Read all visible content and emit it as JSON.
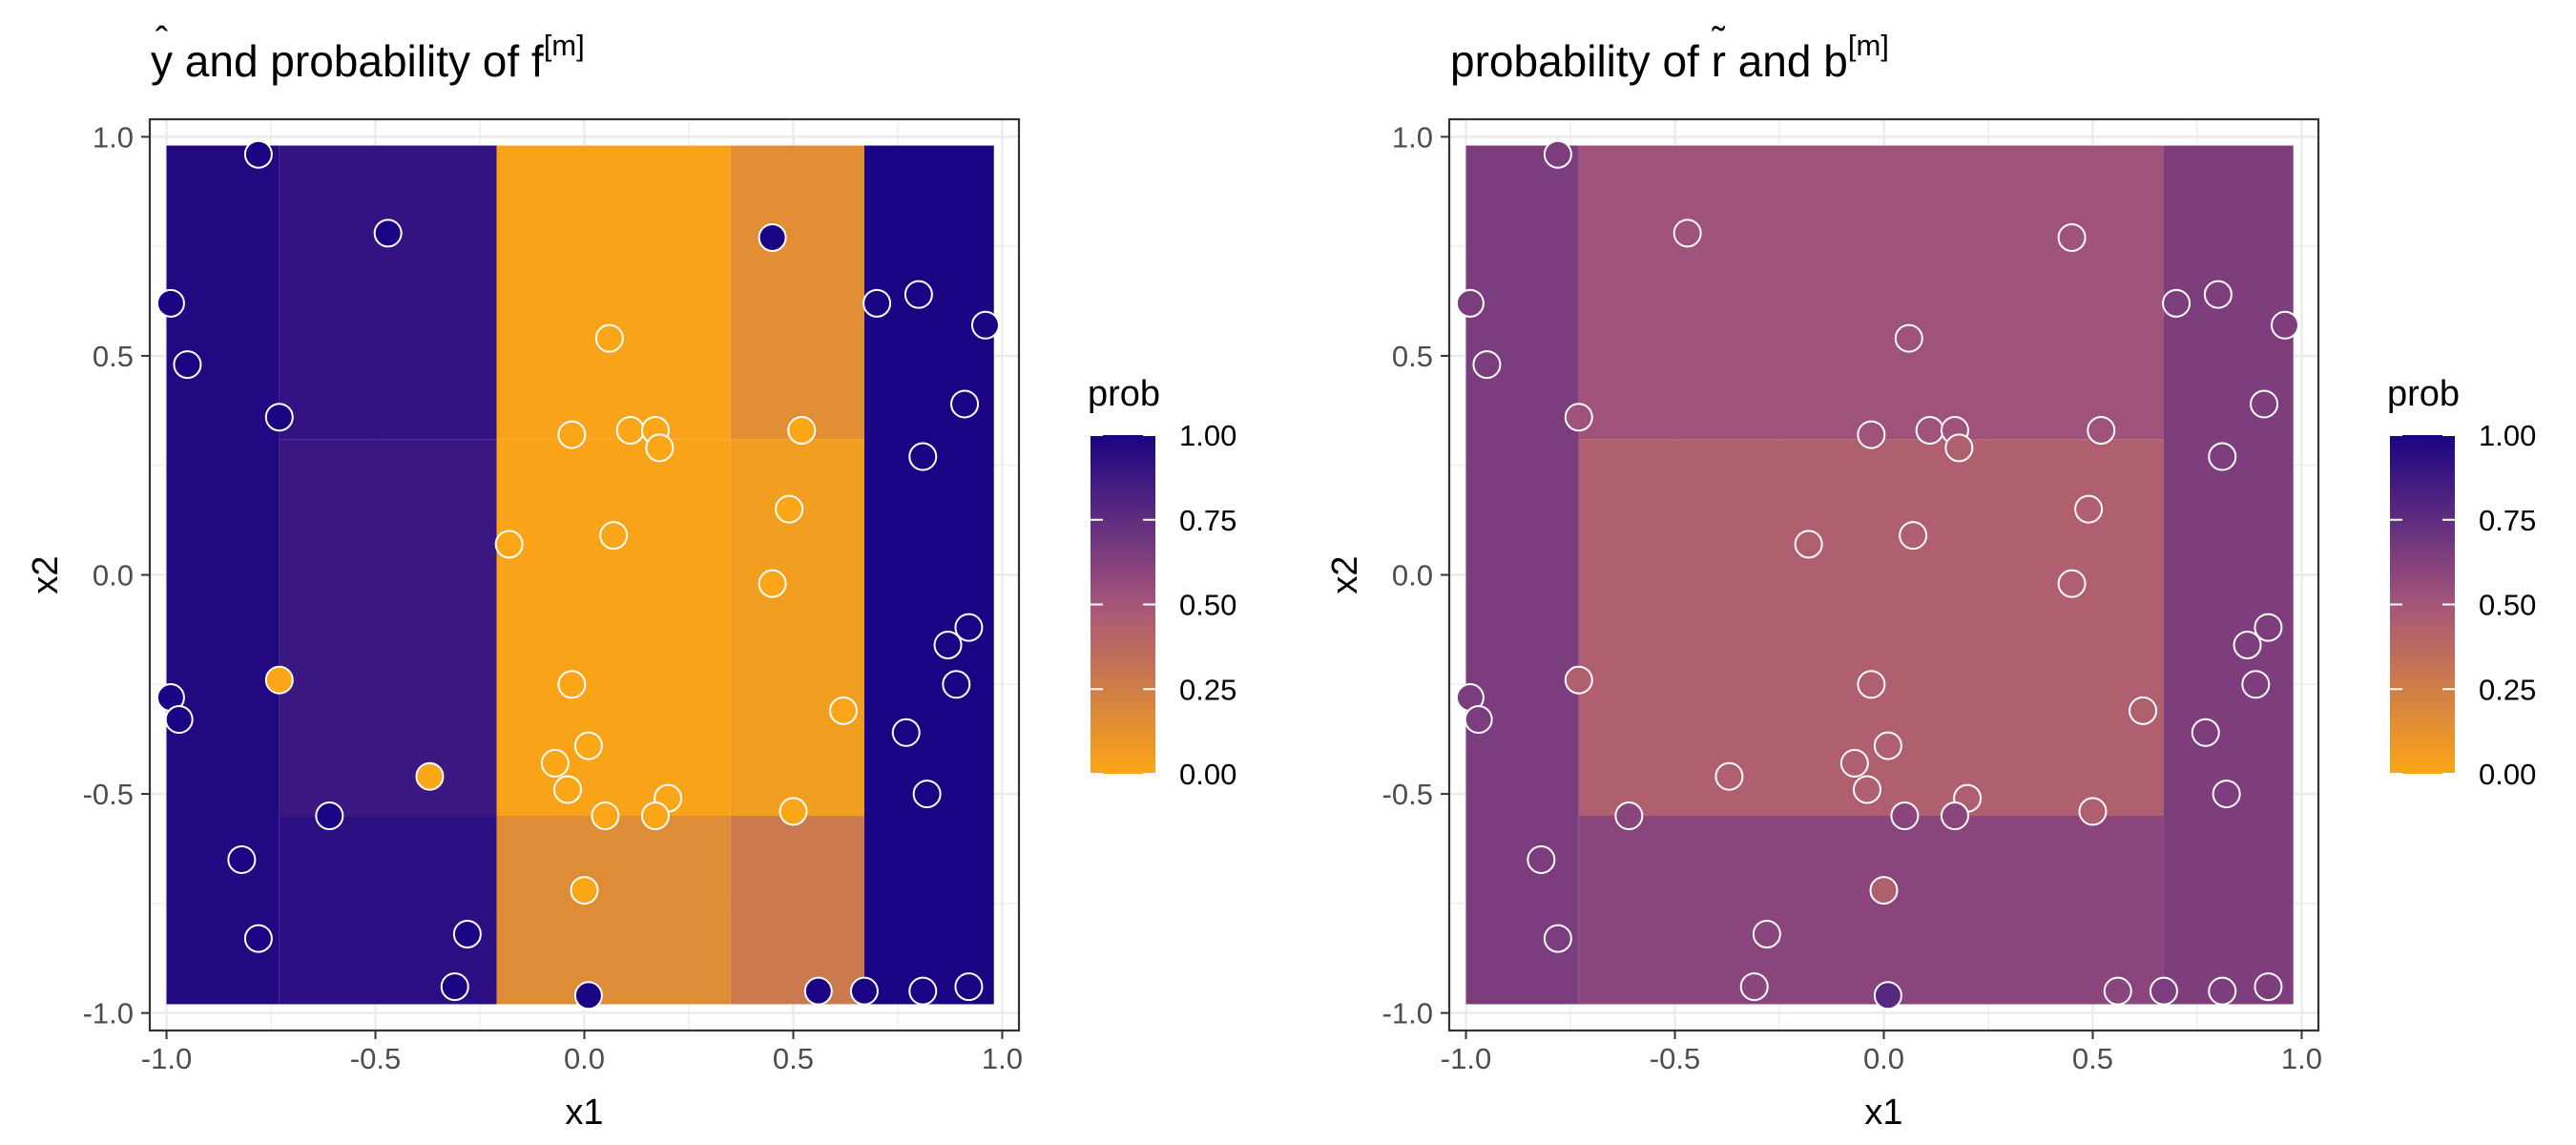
{
  "chart_data": [
    {
      "type": "heatmap",
      "title": "ŷ and probability of f[m]",
      "title_parts": {
        "hat_base": "y",
        "mid": " and probability of f",
        "sup": "[m]"
      },
      "xlabel": "x1",
      "ylabel": "x2",
      "xlim": [
        -1.0,
        1.0
      ],
      "ylim": [
        -1.0,
        1.0
      ],
      "x_ticks": [
        "-1.0",
        "-0.5",
        "0.0",
        "0.5",
        "1.0"
      ],
      "y_ticks": [
        "-1.0",
        "-0.5",
        "0.0",
        "0.5",
        "1.0"
      ],
      "grid": true,
      "legend": {
        "title": "prob",
        "position": "right",
        "min": 0,
        "max": 1,
        "ticks": [
          "1.00",
          "0.75",
          "0.50",
          "0.25",
          "0.00"
        ]
      },
      "regions": [
        {
          "x": [
            -1.0,
            -0.73
          ],
          "y": [
            -0.98,
            0.98
          ],
          "prob": 0.97
        },
        {
          "x": [
            -0.73,
            -0.21
          ],
          "y": [
            -0.98,
            -0.55
          ],
          "prob": 0.94
        },
        {
          "x": [
            -0.73,
            -0.21
          ],
          "y": [
            -0.55,
            0.31
          ],
          "prob": 0.88
        },
        {
          "x": [
            -0.73,
            -0.21
          ],
          "y": [
            0.31,
            0.98
          ],
          "prob": 0.91
        },
        {
          "x": [
            -0.21,
            0.35
          ],
          "y": [
            -0.98,
            -0.55
          ],
          "prob": 0.16
        },
        {
          "x": [
            -0.21,
            0.35
          ],
          "y": [
            -0.55,
            0.31
          ],
          "prob": 0.01
        },
        {
          "x": [
            -0.21,
            0.35
          ],
          "y": [
            0.31,
            0.98
          ],
          "prob": 0.02
        },
        {
          "x": [
            0.35,
            0.67
          ],
          "y": [
            -0.98,
            -0.55
          ],
          "prob": 0.28
        },
        {
          "x": [
            0.35,
            0.67
          ],
          "y": [
            -0.55,
            0.31
          ],
          "prob": 0.05
        },
        {
          "x": [
            0.35,
            0.67
          ],
          "y": [
            0.31,
            0.98
          ],
          "prob": 0.15
        },
        {
          "x": [
            0.67,
            0.98
          ],
          "y": [
            -0.98,
            0.98
          ],
          "prob": 1.0
        }
      ],
      "points": [
        {
          "x": -0.78,
          "y": 0.96,
          "prob": 1
        },
        {
          "x": -0.47,
          "y": 0.78,
          "prob": 1
        },
        {
          "x": 0.45,
          "y": 0.77,
          "prob": 1
        },
        {
          "x": -0.99,
          "y": 0.62,
          "prob": 1
        },
        {
          "x": 0.7,
          "y": 0.62,
          "prob": 1
        },
        {
          "x": 0.8,
          "y": 0.64,
          "prob": 1
        },
        {
          "x": 0.96,
          "y": 0.57,
          "prob": 1
        },
        {
          "x": 0.06,
          "y": 0.54,
          "prob": 0
        },
        {
          "x": -0.95,
          "y": 0.48,
          "prob": 1
        },
        {
          "x": 0.91,
          "y": 0.39,
          "prob": 1
        },
        {
          "x": -0.73,
          "y": 0.36,
          "prob": 1
        },
        {
          "x": -0.03,
          "y": 0.32,
          "prob": 0
        },
        {
          "x": 0.11,
          "y": 0.33,
          "prob": 0
        },
        {
          "x": 0.17,
          "y": 0.33,
          "prob": 0
        },
        {
          "x": 0.18,
          "y": 0.29,
          "prob": 0
        },
        {
          "x": 0.52,
          "y": 0.33,
          "prob": 0
        },
        {
          "x": 0.81,
          "y": 0.27,
          "prob": 1
        },
        {
          "x": 0.49,
          "y": 0.15,
          "prob": 0
        },
        {
          "x": 0.07,
          "y": 0.09,
          "prob": 0
        },
        {
          "x": -0.18,
          "y": 0.07,
          "prob": 0
        },
        {
          "x": 0.45,
          "y": -0.02,
          "prob": 0
        },
        {
          "x": 0.92,
          "y": -0.12,
          "prob": 1
        },
        {
          "x": 0.87,
          "y": -0.16,
          "prob": 1
        },
        {
          "x": -0.73,
          "y": -0.24,
          "prob": 0
        },
        {
          "x": -0.03,
          "y": -0.25,
          "prob": 0
        },
        {
          "x": 0.89,
          "y": -0.25,
          "prob": 1
        },
        {
          "x": -0.99,
          "y": -0.28,
          "prob": 1
        },
        {
          "x": -0.97,
          "y": -0.33,
          "prob": 1
        },
        {
          "x": 0.62,
          "y": -0.31,
          "prob": 0
        },
        {
          "x": 0.77,
          "y": -0.36,
          "prob": 1
        },
        {
          "x": 0.01,
          "y": -0.39,
          "prob": 0
        },
        {
          "x": -0.07,
          "y": -0.43,
          "prob": 0
        },
        {
          "x": -0.37,
          "y": -0.46,
          "prob": 0
        },
        {
          "x": -0.04,
          "y": -0.49,
          "prob": 0
        },
        {
          "x": 0.2,
          "y": -0.51,
          "prob": 0
        },
        {
          "x": 0.82,
          "y": -0.5,
          "prob": 1
        },
        {
          "x": 0.05,
          "y": -0.55,
          "prob": 0
        },
        {
          "x": 0.17,
          "y": -0.55,
          "prob": 0
        },
        {
          "x": -0.61,
          "y": -0.55,
          "prob": 1
        },
        {
          "x": 0.5,
          "y": -0.54,
          "prob": 0
        },
        {
          "x": -0.82,
          "y": -0.65,
          "prob": 1
        },
        {
          "x": 0.0,
          "y": -0.72,
          "prob": 0
        },
        {
          "x": -0.78,
          "y": -0.83,
          "prob": 1
        },
        {
          "x": -0.28,
          "y": -0.82,
          "prob": 1
        },
        {
          "x": -0.31,
          "y": -0.94,
          "prob": 1
        },
        {
          "x": 0.01,
          "y": -0.96,
          "prob": 1
        },
        {
          "x": 0.56,
          "y": -0.95,
          "prob": 1
        },
        {
          "x": 0.67,
          "y": -0.95,
          "prob": 1
        },
        {
          "x": 0.81,
          "y": -0.95,
          "prob": 1
        },
        {
          "x": 0.92,
          "y": -0.94,
          "prob": 1
        }
      ]
    },
    {
      "type": "heatmap",
      "title": "probability of r̃ and b[m]",
      "title_parts": {
        "pre": "probability of ",
        "tilde_base": "r",
        "mid": " and b",
        "sup": "[m]"
      },
      "xlabel": "x1",
      "ylabel": "x2",
      "xlim": [
        -1.0,
        1.0
      ],
      "ylim": [
        -1.0,
        1.0
      ],
      "x_ticks": [
        "-1.0",
        "-0.5",
        "0.0",
        "0.5",
        "1.0"
      ],
      "y_ticks": [
        "-1.0",
        "-0.5",
        "0.0",
        "0.5",
        "1.0"
      ],
      "grid": true,
      "legend": {
        "title": "prob",
        "position": "right",
        "min": 0,
        "max": 1,
        "ticks": [
          "1.00",
          "0.75",
          "0.50",
          "0.25",
          "0.00"
        ]
      },
      "regions": [
        {
          "x": [
            -1.0,
            -0.73
          ],
          "y": [
            -0.98,
            0.98
          ],
          "prob": 0.65
        },
        {
          "x": [
            -0.73,
            0.67
          ],
          "y": [
            -0.98,
            -0.55
          ],
          "prob": 0.6
        },
        {
          "x": [
            -0.73,
            0.67
          ],
          "y": [
            -0.55,
            0.31
          ],
          "prob": 0.44
        },
        {
          "x": [
            -0.73,
            0.67
          ],
          "y": [
            0.31,
            0.98
          ],
          "prob": 0.52
        },
        {
          "x": [
            0.67,
            0.98
          ],
          "y": [
            -0.98,
            0.98
          ],
          "prob": 0.64
        }
      ],
      "points": [
        {
          "x": -0.78,
          "y": 0.96,
          "prob": 0.65
        },
        {
          "x": -0.47,
          "y": 0.78,
          "prob": 0.52
        },
        {
          "x": 0.45,
          "y": 0.77,
          "prob": 0.52
        },
        {
          "x": -0.99,
          "y": 0.62,
          "prob": 0.65
        },
        {
          "x": 0.7,
          "y": 0.62,
          "prob": 0.64
        },
        {
          "x": 0.8,
          "y": 0.64,
          "prob": 0.64
        },
        {
          "x": 0.96,
          "y": 0.57,
          "prob": 0.64
        },
        {
          "x": 0.06,
          "y": 0.54,
          "prob": 0.52
        },
        {
          "x": -0.95,
          "y": 0.48,
          "prob": 0.65
        },
        {
          "x": 0.91,
          "y": 0.39,
          "prob": 0.64
        },
        {
          "x": -0.73,
          "y": 0.36,
          "prob": 0.52
        },
        {
          "x": -0.03,
          "y": 0.32,
          "prob": 0.52
        },
        {
          "x": 0.11,
          "y": 0.33,
          "prob": 0.52
        },
        {
          "x": 0.17,
          "y": 0.33,
          "prob": 0.52
        },
        {
          "x": 0.18,
          "y": 0.29,
          "prob": 0.44
        },
        {
          "x": 0.52,
          "y": 0.33,
          "prob": 0.52
        },
        {
          "x": 0.81,
          "y": 0.27,
          "prob": 0.64
        },
        {
          "x": 0.49,
          "y": 0.15,
          "prob": 0.44
        },
        {
          "x": 0.07,
          "y": 0.09,
          "prob": 0.44
        },
        {
          "x": -0.18,
          "y": 0.07,
          "prob": 0.44
        },
        {
          "x": 0.45,
          "y": -0.02,
          "prob": 0.44
        },
        {
          "x": 0.92,
          "y": -0.12,
          "prob": 0.64
        },
        {
          "x": 0.87,
          "y": -0.16,
          "prob": 0.64
        },
        {
          "x": -0.73,
          "y": -0.24,
          "prob": 0.44
        },
        {
          "x": -0.03,
          "y": -0.25,
          "prob": 0.44
        },
        {
          "x": 0.89,
          "y": -0.25,
          "prob": 0.64
        },
        {
          "x": -0.99,
          "y": -0.28,
          "prob": 0.65
        },
        {
          "x": -0.97,
          "y": -0.33,
          "prob": 0.65
        },
        {
          "x": 0.62,
          "y": -0.31,
          "prob": 0.44
        },
        {
          "x": 0.77,
          "y": -0.36,
          "prob": 0.64
        },
        {
          "x": 0.01,
          "y": -0.39,
          "prob": 0.44
        },
        {
          "x": -0.07,
          "y": -0.43,
          "prob": 0.44
        },
        {
          "x": -0.37,
          "y": -0.46,
          "prob": 0.44
        },
        {
          "x": -0.04,
          "y": -0.49,
          "prob": 0.44
        },
        {
          "x": 0.2,
          "y": -0.51,
          "prob": 0.44
        },
        {
          "x": 0.82,
          "y": -0.5,
          "prob": 0.64
        },
        {
          "x": 0.05,
          "y": -0.55,
          "prob": 0.6
        },
        {
          "x": 0.17,
          "y": -0.55,
          "prob": 0.6
        },
        {
          "x": -0.61,
          "y": -0.55,
          "prob": 0.6
        },
        {
          "x": 0.5,
          "y": -0.54,
          "prob": 0.44
        },
        {
          "x": -0.82,
          "y": -0.65,
          "prob": 0.65
        },
        {
          "x": 0.0,
          "y": -0.72,
          "prob": 0.44
        },
        {
          "x": -0.78,
          "y": -0.83,
          "prob": 0.65
        },
        {
          "x": -0.28,
          "y": -0.82,
          "prob": 0.6
        },
        {
          "x": -0.31,
          "y": -0.94,
          "prob": 0.6
        },
        {
          "x": 0.01,
          "y": -0.96,
          "prob": 0.78
        },
        {
          "x": 0.56,
          "y": -0.95,
          "prob": 0.6
        },
        {
          "x": 0.67,
          "y": -0.95,
          "prob": 0.64
        },
        {
          "x": 0.81,
          "y": -0.95,
          "prob": 0.64
        },
        {
          "x": 0.92,
          "y": -0.94,
          "prob": 0.64
        }
      ]
    }
  ],
  "colors": {
    "scale_high": "#1a0483",
    "scale_mid": "#a5557a",
    "scale_low": "#fba616",
    "point_border": "#ffffff",
    "grid": "#ebebeb",
    "panel_border": "#333333",
    "text": "#000000",
    "tick_text": "#4d4d4d"
  }
}
